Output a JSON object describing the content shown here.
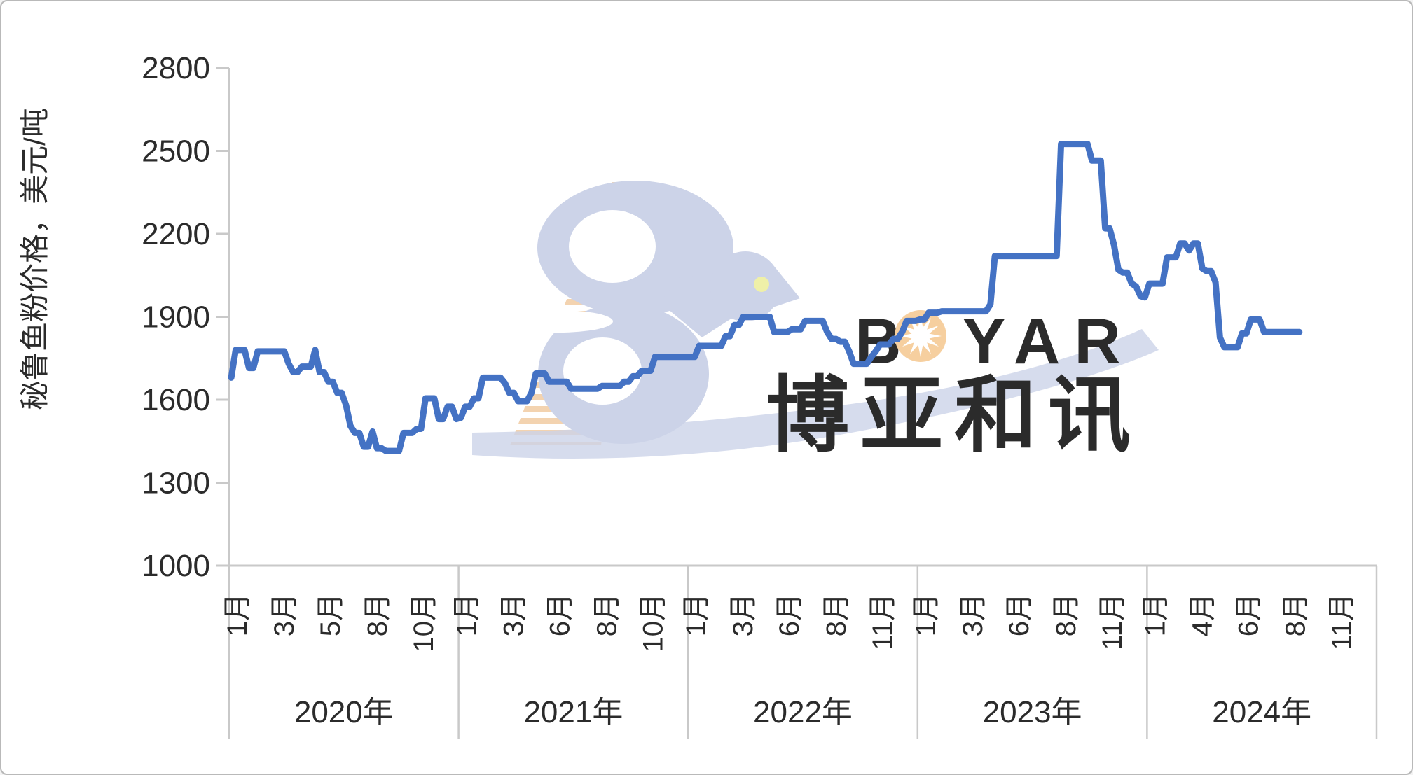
{
  "axis_y_title": "秘鲁鱼粉价格，美元/吨",
  "chart_data": {
    "type": "line",
    "series_label": "秘鲁鱼粉价格",
    "unit": "美元/吨",
    "line_color": "#4472c4",
    "grid": false,
    "legend": "none",
    "y_axis": {
      "min": 1000,
      "max": 2800,
      "step": 300,
      "ticks": [
        2800,
        2500,
        2200,
        1900,
        1600,
        1300,
        1000
      ]
    },
    "series": [
      {
        "year_label": "2020年",
        "months": [
          "1月",
          "3月",
          "5月",
          "8月",
          "10月"
        ],
        "values": [
          1680,
          1780,
          1780,
          1780,
          1715,
          1715,
          1775,
          1775,
          1775,
          1775,
          1775,
          1775,
          1775,
          1730,
          1700,
          1700,
          1720,
          1720,
          1720,
          1780,
          1700,
          1700,
          1665,
          1665,
          1625,
          1625,
          1580,
          1505,
          1480,
          1480,
          1430,
          1430,
          1485,
          1425,
          1425,
          1415,
          1415,
          1415,
          1415,
          1480,
          1480,
          1480,
          1495,
          1495,
          1605,
          1605,
          1605,
          1530,
          1530,
          1575,
          1575,
          1530
        ]
      },
      {
        "year_label": "2021年",
        "months": [
          "1月",
          "3月",
          "6月",
          "8月",
          "10月"
        ],
        "values": [
          1535,
          1575,
          1575,
          1605,
          1605,
          1680,
          1680,
          1680,
          1680,
          1680,
          1660,
          1625,
          1625,
          1595,
          1595,
          1595,
          1625,
          1695,
          1695,
          1695,
          1665,
          1665,
          1665,
          1665,
          1665,
          1640,
          1640,
          1640,
          1640,
          1640,
          1640,
          1640,
          1650,
          1650,
          1650,
          1650,
          1650,
          1665,
          1665,
          1685,
          1685,
          1705,
          1705,
          1705,
          1755,
          1755,
          1755,
          1755,
          1755,
          1755,
          1755,
          1755
        ]
      },
      {
        "year_label": "2022年",
        "months": [
          "1月",
          "3月",
          "6月",
          "8月",
          "11月"
        ],
        "values": [
          1755,
          1755,
          1795,
          1795,
          1795,
          1795,
          1795,
          1795,
          1830,
          1830,
          1870,
          1870,
          1900,
          1900,
          1900,
          1900,
          1900,
          1900,
          1900,
          1845,
          1845,
          1845,
          1845,
          1855,
          1855,
          1855,
          1885,
          1885,
          1885,
          1885,
          1885,
          1845,
          1820,
          1820,
          1810,
          1810,
          1775,
          1730,
          1730,
          1730,
          1730,
          1755,
          1775,
          1800,
          1800,
          1800,
          1820,
          1820,
          1845,
          1885,
          1885,
          1885
        ]
      },
      {
        "year_label": "2023年",
        "months": [
          "1月",
          "3月",
          "6月",
          "8月",
          "11月"
        ],
        "values": [
          1890,
          1890,
          1915,
          1915,
          1915,
          1920,
          1920,
          1920,
          1920,
          1920,
          1920,
          1920,
          1920,
          1920,
          1920,
          1920,
          1945,
          2120,
          2120,
          2120,
          2120,
          2120,
          2120,
          2120,
          2120,
          2120,
          2120,
          2120,
          2120,
          2120,
          2120,
          2120,
          2525,
          2525,
          2525,
          2525,
          2525,
          2525,
          2525,
          2465,
          2465,
          2465,
          2220,
          2220,
          2160,
          2070,
          2060,
          2060,
          2020,
          2010,
          1975,
          1970
        ]
      },
      {
        "year_label": "2024年",
        "months": [
          "1月",
          "4月",
          "6月",
          "8月",
          "11月"
        ],
        "values": [
          2020,
          2020,
          2020,
          2020,
          2115,
          2115,
          2115,
          2165,
          2165,
          2140,
          2165,
          2165,
          2075,
          2065,
          2065,
          2025,
          1825,
          1790,
          1790,
          1790,
          1790,
          1840,
          1840,
          1890,
          1890,
          1890,
          1845,
          1845,
          1845,
          1845,
          1845,
          1845,
          1845,
          1845,
          1845
        ]
      }
    ]
  },
  "watermark": {
    "latin_b": "B",
    "latin_rest": "YAR",
    "cn": "博亚和讯",
    "orange": "#f2cda4",
    "orange_text": "#f7d6ab",
    "blue": "#ccd3e8",
    "text_blue": "#c9d1e9",
    "eye": "#eff0a8"
  },
  "frame": {
    "background": "#ffffff",
    "border": "#b9b9b9",
    "axis_color": "#c9c9c9",
    "text_color": "#2b2b2b"
  }
}
